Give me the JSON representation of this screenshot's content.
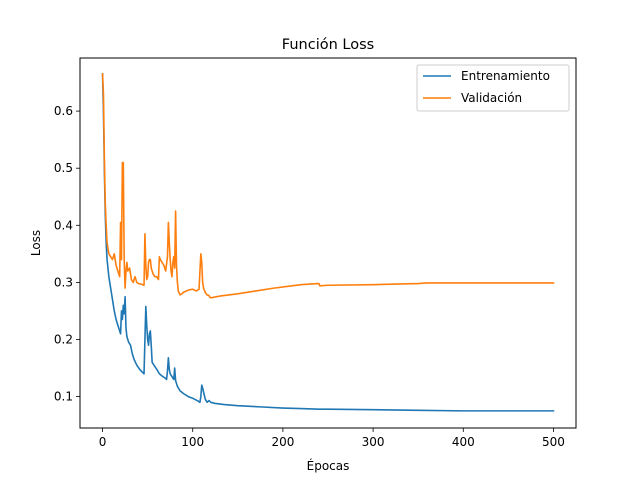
{
  "chart_data": {
    "type": "line",
    "title": "Función Loss",
    "xlabel": "Épocas",
    "ylabel": "Loss",
    "xlim": [
      -25,
      525
    ],
    "ylim": [
      0.045,
      0.693
    ],
    "xticks": [
      0,
      100,
      200,
      300,
      400,
      500
    ],
    "yticks": [
      0.1,
      0.2,
      0.3,
      0.4,
      0.5,
      0.6
    ],
    "legend_position": "upper right",
    "grid": false,
    "series": [
      {
        "name": "Entrenamiento",
        "color": "#1f77b4",
        "points": [
          [
            0,
            0.665
          ],
          [
            1,
            0.6
          ],
          [
            2,
            0.5
          ],
          [
            3,
            0.42
          ],
          [
            4,
            0.37
          ],
          [
            5,
            0.34
          ],
          [
            7,
            0.31
          ],
          [
            9,
            0.29
          ],
          [
            11,
            0.27
          ],
          [
            13,
            0.25
          ],
          [
            15,
            0.235
          ],
          [
            17,
            0.225
          ],
          [
            19,
            0.215
          ],
          [
            20,
            0.21
          ],
          [
            21,
            0.25
          ],
          [
            22,
            0.235
          ],
          [
            23,
            0.26
          ],
          [
            24,
            0.245
          ],
          [
            25,
            0.275
          ],
          [
            26,
            0.22
          ],
          [
            27,
            0.205
          ],
          [
            29,
            0.195
          ],
          [
            31,
            0.19
          ],
          [
            33,
            0.175
          ],
          [
            35,
            0.165
          ],
          [
            38,
            0.155
          ],
          [
            41,
            0.148
          ],
          [
            44,
            0.143
          ],
          [
            46,
            0.14
          ],
          [
            47,
            0.2
          ],
          [
            48,
            0.258
          ],
          [
            49,
            0.225
          ],
          [
            50,
            0.2
          ],
          [
            51,
            0.19
          ],
          [
            52,
            0.21
          ],
          [
            53,
            0.215
          ],
          [
            54,
            0.19
          ],
          [
            55,
            0.16
          ],
          [
            57,
            0.155
          ],
          [
            60,
            0.148
          ],
          [
            63,
            0.14
          ],
          [
            66,
            0.136
          ],
          [
            69,
            0.133
          ],
          [
            71,
            0.13
          ],
          [
            72,
            0.145
          ],
          [
            73,
            0.168
          ],
          [
            74,
            0.148
          ],
          [
            75,
            0.14
          ],
          [
            77,
            0.135
          ],
          [
            79,
            0.13
          ],
          [
            80,
            0.15
          ],
          [
            81,
            0.128
          ],
          [
            83,
            0.118
          ],
          [
            86,
            0.11
          ],
          [
            90,
            0.105
          ],
          [
            95,
            0.1
          ],
          [
            100,
            0.097
          ],
          [
            105,
            0.093
          ],
          [
            108,
            0.09
          ],
          [
            109,
            0.1
          ],
          [
            110,
            0.12
          ],
          [
            111,
            0.115
          ],
          [
            112,
            0.108
          ],
          [
            114,
            0.095
          ],
          [
            116,
            0.09
          ],
          [
            118,
            0.093
          ],
          [
            120,
            0.09
          ],
          [
            125,
            0.088
          ],
          [
            135,
            0.086
          ],
          [
            150,
            0.084
          ],
          [
            175,
            0.082
          ],
          [
            200,
            0.08
          ],
          [
            220,
            0.079
          ],
          [
            240,
            0.078
          ],
          [
            250,
            0.078
          ],
          [
            300,
            0.077
          ],
          [
            350,
            0.076
          ],
          [
            400,
            0.075
          ],
          [
            450,
            0.075
          ],
          [
            500,
            0.075
          ]
        ]
      },
      {
        "name": "Validación",
        "color": "#ff7f0e",
        "points": [
          [
            0,
            0.665
          ],
          [
            1,
            0.63
          ],
          [
            2,
            0.52
          ],
          [
            3,
            0.44
          ],
          [
            4,
            0.4
          ],
          [
            5,
            0.37
          ],
          [
            7,
            0.35
          ],
          [
            9,
            0.345
          ],
          [
            11,
            0.34
          ],
          [
            13,
            0.35
          ],
          [
            15,
            0.33
          ],
          [
            17,
            0.32
          ],
          [
            19,
            0.31
          ],
          [
            20,
            0.405
          ],
          [
            21,
            0.34
          ],
          [
            22,
            0.51
          ],
          [
            23,
            0.51
          ],
          [
            24,
            0.34
          ],
          [
            25,
            0.29
          ],
          [
            26,
            0.32
          ],
          [
            27,
            0.335
          ],
          [
            28,
            0.32
          ],
          [
            30,
            0.325
          ],
          [
            32,
            0.305
          ],
          [
            34,
            0.3
          ],
          [
            36,
            0.31
          ],
          [
            38,
            0.3
          ],
          [
            40,
            0.298
          ],
          [
            43,
            0.297
          ],
          [
            46,
            0.295
          ],
          [
            47,
            0.385
          ],
          [
            48,
            0.33
          ],
          [
            49,
            0.305
          ],
          [
            50,
            0.31
          ],
          [
            51,
            0.335
          ],
          [
            52,
            0.34
          ],
          [
            53,
            0.34
          ],
          [
            54,
            0.325
          ],
          [
            56,
            0.315
          ],
          [
            58,
            0.31
          ],
          [
            60,
            0.31
          ],
          [
            62,
            0.305
          ],
          [
            63,
            0.345
          ],
          [
            64,
            0.34
          ],
          [
            66,
            0.335
          ],
          [
            68,
            0.33
          ],
          [
            70,
            0.32
          ],
          [
            72,
            0.345
          ],
          [
            73,
            0.405
          ],
          [
            74,
            0.37
          ],
          [
            75,
            0.34
          ],
          [
            76,
            0.32
          ],
          [
            77,
            0.31
          ],
          [
            78,
            0.335
          ],
          [
            79,
            0.345
          ],
          [
            80,
            0.325
          ],
          [
            81,
            0.425
          ],
          [
            82,
            0.33
          ],
          [
            83,
            0.3
          ],
          [
            84,
            0.285
          ],
          [
            86,
            0.278
          ],
          [
            88,
            0.28
          ],
          [
            90,
            0.283
          ],
          [
            93,
            0.285
          ],
          [
            96,
            0.287
          ],
          [
            100,
            0.288
          ],
          [
            104,
            0.285
          ],
          [
            107,
            0.288
          ],
          [
            108,
            0.32
          ],
          [
            109,
            0.35
          ],
          [
            110,
            0.335
          ],
          [
            111,
            0.3
          ],
          [
            112,
            0.29
          ],
          [
            114,
            0.282
          ],
          [
            116,
            0.278
          ],
          [
            118,
            0.277
          ],
          [
            119,
            0.274
          ],
          [
            120,
            0.273
          ],
          [
            130,
            0.276
          ],
          [
            150,
            0.28
          ],
          [
            170,
            0.285
          ],
          [
            190,
            0.29
          ],
          [
            210,
            0.294
          ],
          [
            220,
            0.296
          ],
          [
            230,
            0.297
          ],
          [
            240,
            0.298
          ],
          [
            241,
            0.294
          ],
          [
            250,
            0.295
          ],
          [
            300,
            0.296
          ],
          [
            350,
            0.298
          ],
          [
            360,
            0.299
          ],
          [
            400,
            0.299
          ],
          [
            450,
            0.299
          ],
          [
            500,
            0.299
          ]
        ]
      }
    ]
  }
}
